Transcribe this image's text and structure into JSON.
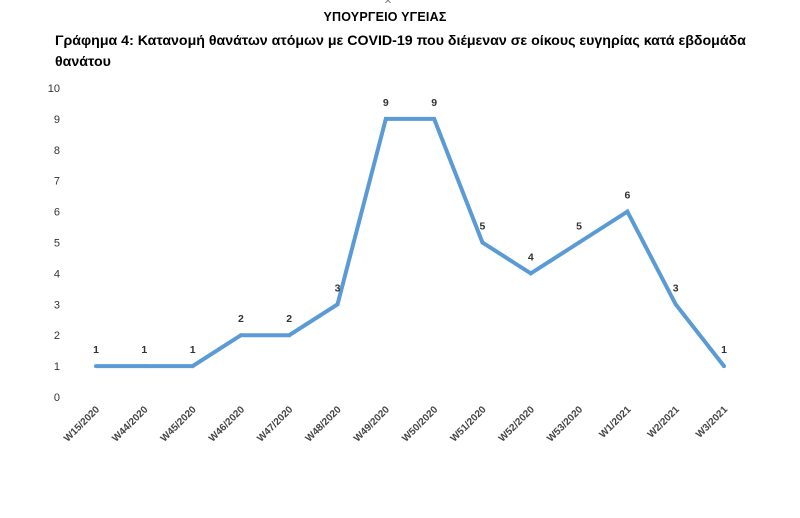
{
  "header": {
    "emblem_icon": "cross-emblem-icon",
    "ministry": "ΥΠΟΥΡΓΕΙΟ ΥΓΕΙΑΣ"
  },
  "chart_data": {
    "type": "line",
    "title": "Γράφημα 4: Κατανομή θανάτων ατόμων με COVID-19 που διέμεναν σε οίκους ευγηρίας κατά εβδομάδα θανάτου",
    "xlabel": "",
    "ylabel": "",
    "categories": [
      "W15/2020",
      "W44/2020",
      "W45/2020",
      "W46/2020",
      "W47/2020",
      "W48/2020",
      "W49/2020",
      "W50/2020",
      "W51/2020",
      "W52/2020",
      "W53/2020",
      "W1/2021",
      "W2/2021",
      "W3/2021"
    ],
    "series": [
      {
        "values": [
          1,
          1,
          1,
          2,
          2,
          3,
          9,
          9,
          5,
          4,
          5,
          6,
          3,
          1
        ],
        "color": "#5b9bd5"
      }
    ],
    "ylim": [
      0,
      10
    ],
    "yticks": [
      0,
      1,
      2,
      3,
      4,
      5,
      6,
      7,
      8,
      9,
      10
    ],
    "grid": false,
    "data_labels": true
  }
}
